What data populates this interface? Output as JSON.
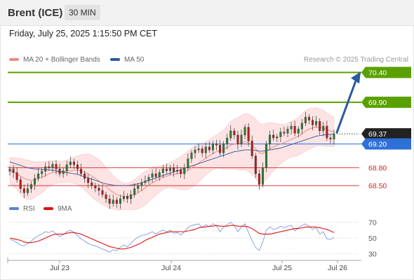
{
  "header": {
    "title": "Brent (ICE)",
    "timeframe": "30 MIN"
  },
  "datetime": "Friday, July 25, 2025 1:15:50 PM CET",
  "legend": {
    "items": [
      {
        "label": "MA 20 + Bollinger Bands",
        "color": "#f28b82"
      },
      {
        "label": "MA 50",
        "color": "#2d5a9e"
      }
    ],
    "source": "Research © 2025 Trading Central"
  },
  "chart_data": {
    "type": "candlestick",
    "x_ticks": [
      "Jul 23",
      "Jul 24",
      "Jul 25",
      "Jul 26"
    ],
    "levels": [
      {
        "value": "70.40",
        "type": "resistance",
        "color": "#5aa000"
      },
      {
        "value": "69.90",
        "type": "resistance",
        "color": "#5aa000"
      },
      {
        "value": "69.37",
        "type": "last",
        "color": "#222222"
      },
      {
        "value": "69.20",
        "type": "pivot",
        "color": "#4a86e8"
      },
      {
        "value": "68.80",
        "type": "support",
        "color": "#d62020"
      },
      {
        "value": "68.50",
        "type": "support",
        "color": "#d62020"
      }
    ],
    "ylim": [
      68.35,
      70.5
    ],
    "close": [
      68.78,
      68.72,
      68.6,
      68.45,
      68.38,
      68.45,
      68.52,
      68.62,
      68.7,
      68.74,
      68.82,
      68.8,
      68.86,
      68.78,
      68.7,
      68.75,
      68.85,
      68.9,
      68.85,
      68.78,
      68.7,
      68.62,
      68.55,
      68.5,
      68.46,
      68.42,
      68.35,
      68.28,
      68.2,
      68.26,
      68.2,
      68.28,
      68.32,
      68.28,
      68.35,
      68.45,
      68.5,
      68.55,
      68.58,
      68.64,
      68.7,
      68.65,
      68.72,
      68.78,
      68.75,
      68.8,
      68.74,
      68.76,
      68.7,
      68.8,
      68.95,
      69.05,
      69.1,
      69.12,
      69.05,
      69.15,
      69.1,
      69.2,
      69.18,
      69.05,
      69.2,
      69.3,
      69.42,
      69.35,
      69.2,
      69.35,
      69.48,
      69.25,
      69.0,
      68.7,
      68.52,
      68.8,
      69.2,
      69.35,
      69.3,
      69.32,
      69.4,
      69.38,
      69.45,
      69.5,
      69.38,
      69.45,
      69.55,
      69.65,
      69.6,
      69.52,
      69.58,
      69.42,
      69.5,
      69.3,
      69.28,
      69.37
    ],
    "ma20": [
      68.75,
      68.73,
      68.7,
      68.66,
      68.62,
      68.6,
      68.59,
      68.6,
      68.62,
      68.64,
      68.67,
      68.7,
      68.72,
      68.73,
      68.73,
      68.73,
      68.74,
      68.75,
      68.76,
      68.76,
      68.75,
      68.73,
      68.7,
      68.66,
      68.62,
      68.58,
      68.53,
      68.48,
      68.43,
      68.39,
      68.35,
      68.33,
      68.32,
      68.32,
      68.33,
      68.35,
      68.38,
      68.42,
      68.46,
      68.5,
      68.55,
      68.58,
      68.61,
      68.64,
      68.66,
      68.68,
      68.69,
      68.7,
      68.71,
      68.73,
      68.76,
      68.8,
      68.84,
      68.88,
      68.92,
      68.96,
      69.0,
      69.04,
      69.07,
      69.09,
      69.11,
      69.14,
      69.18,
      69.2,
      69.2,
      69.22,
      69.24,
      69.22,
      69.18,
      69.12,
      69.05,
      69.04,
      69.08,
      69.12,
      69.15,
      69.18,
      69.2,
      69.22,
      69.25,
      69.28,
      69.3,
      69.33,
      69.37,
      69.42,
      69.45,
      69.47,
      69.49,
      69.48,
      69.47,
      69.44,
      69.42,
      69.4
    ],
    "ma50": [
      68.9,
      68.88,
      68.86,
      68.84,
      68.82,
      68.8,
      68.79,
      68.78,
      68.78,
      68.77,
      68.77,
      68.76,
      68.76,
      68.75,
      68.74,
      68.73,
      68.72,
      68.71,
      68.7,
      68.69,
      68.67,
      68.65,
      68.63,
      68.61,
      68.59,
      68.57,
      68.55,
      68.53,
      68.52,
      68.51,
      68.5,
      68.5,
      68.5,
      68.5,
      68.51,
      68.52,
      68.53,
      68.55,
      68.57,
      68.59,
      68.61,
      68.63,
      68.65,
      68.67,
      68.69,
      68.71,
      68.73,
      68.75,
      68.77,
      68.79,
      68.81,
      68.83,
      68.85,
      68.87,
      68.89,
      68.91,
      68.93,
      68.95,
      68.97,
      68.99,
      69.01,
      69.03,
      69.05,
      69.07,
      69.08,
      69.09,
      69.1,
      69.1,
      69.1,
      69.09,
      69.08,
      69.08,
      69.09,
      69.1,
      69.11,
      69.12,
      69.13,
      69.15,
      69.17,
      69.19,
      69.21,
      69.23,
      69.25,
      69.27,
      69.29,
      69.31,
      69.33,
      69.34,
      69.35,
      69.36,
      69.36,
      69.37
    ],
    "bb_width": [
      0.22,
      0.24,
      0.26,
      0.3,
      0.32,
      0.33,
      0.32,
      0.3,
      0.28,
      0.26,
      0.24,
      0.22,
      0.2,
      0.19,
      0.18,
      0.18,
      0.19,
      0.2,
      0.22,
      0.24,
      0.27,
      0.3,
      0.33,
      0.35,
      0.36,
      0.36,
      0.35,
      0.33,
      0.31,
      0.28,
      0.26,
      0.24,
      0.22,
      0.22,
      0.23,
      0.25,
      0.27,
      0.28,
      0.28,
      0.27,
      0.26,
      0.24,
      0.22,
      0.2,
      0.2,
      0.21,
      0.23,
      0.25,
      0.28,
      0.3,
      0.32,
      0.33,
      0.33,
      0.32,
      0.3,
      0.28,
      0.27,
      0.27,
      0.28,
      0.3,
      0.33,
      0.36,
      0.4,
      0.42,
      0.44,
      0.46,
      0.47,
      0.48,
      0.49,
      0.5,
      0.5,
      0.49,
      0.47,
      0.44,
      0.4,
      0.36,
      0.33,
      0.31,
      0.3,
      0.3,
      0.31,
      0.32,
      0.33,
      0.34,
      0.34,
      0.33,
      0.32,
      0.31,
      0.3,
      0.28,
      0.26,
      0.25
    ],
    "forecast": {
      "target": "70.40"
    },
    "rsi": {
      "legend": [
        {
          "label": "RSI",
          "color": "#5b80d6"
        },
        {
          "label": "9MA",
          "color": "#e01010"
        }
      ],
      "y_ticks": [
        "70",
        "50",
        "30"
      ],
      "ylim": [
        25,
        75
      ],
      "values": [
        48,
        47,
        44,
        41,
        40,
        43,
        46,
        50,
        53,
        55,
        58,
        57,
        59,
        55,
        52,
        54,
        58,
        60,
        57,
        53,
        49,
        46,
        43,
        41,
        40,
        38,
        36,
        34,
        32,
        35,
        34,
        38,
        41,
        39,
        43,
        48,
        51,
        53,
        54,
        56,
        58,
        55,
        58,
        60,
        58,
        60,
        56,
        57,
        54,
        58,
        63,
        66,
        67,
        68,
        63,
        67,
        64,
        68,
        66,
        58,
        64,
        67,
        70,
        66,
        58,
        64,
        68,
        57,
        47,
        38,
        34,
        45,
        60,
        64,
        61,
        62,
        65,
        63,
        65,
        66,
        59,
        63,
        66,
        68,
        65,
        61,
        63,
        55,
        58,
        49,
        48,
        51
      ],
      "ma": [
        50,
        49,
        48,
        47,
        45,
        44,
        44,
        45,
        46,
        48,
        50,
        52,
        54,
        55,
        55,
        55,
        56,
        57,
        57,
        56,
        55,
        53,
        51,
        49,
        47,
        45,
        43,
        41,
        39,
        38,
        37,
        36,
        36,
        37,
        38,
        40,
        42,
        44,
        47,
        49,
        51,
        53,
        55,
        56,
        57,
        58,
        58,
        58,
        58,
        58,
        59,
        60,
        61,
        63,
        64,
        64,
        65,
        65,
        66,
        65,
        65,
        65,
        66,
        66,
        65,
        65,
        65,
        64,
        62,
        59,
        56,
        55,
        55,
        55,
        56,
        57,
        58,
        59,
        60,
        61,
        62,
        62,
        63,
        64,
        64,
        64,
        64,
        63,
        62,
        61,
        59,
        57
      ]
    }
  }
}
